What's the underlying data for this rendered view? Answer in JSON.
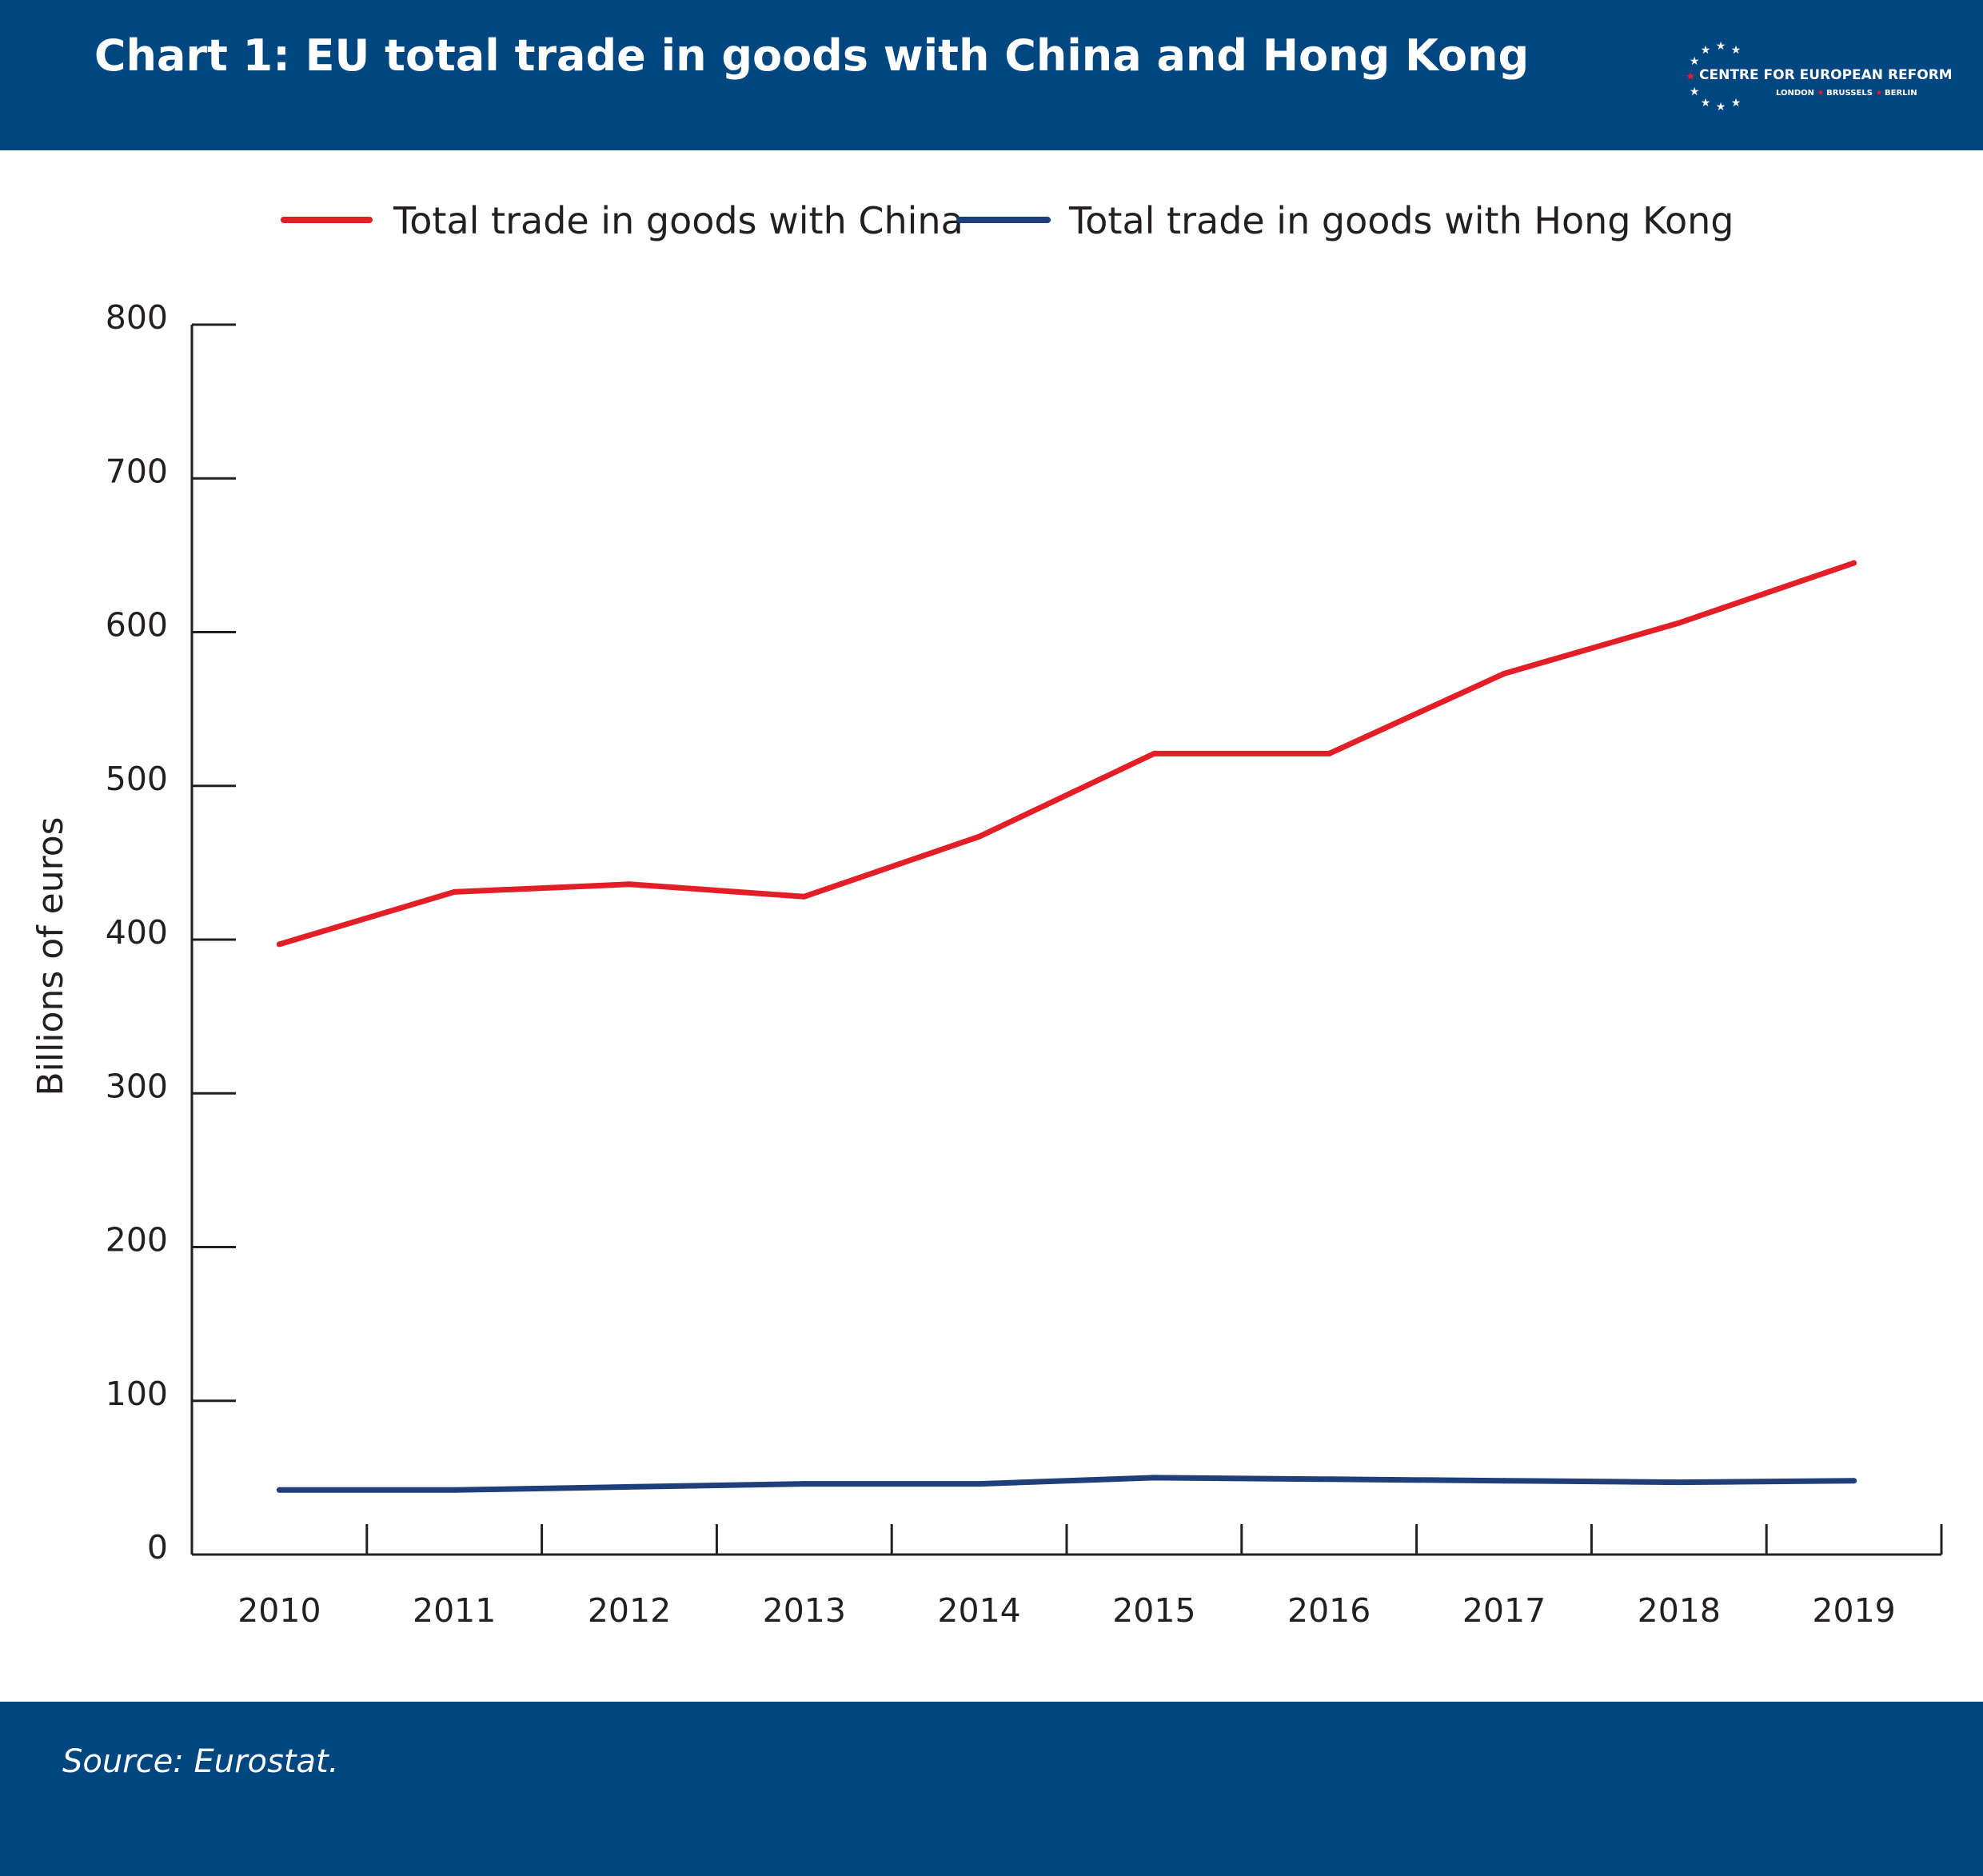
{
  "header": {
    "title": "Chart 1: EU total trade in goods with China and Hong Kong",
    "background": "#004680"
  },
  "logo": {
    "name": "CENTRE FOR EUROPEAN REFORM",
    "cities": [
      "LONDON",
      "BRUSSELS",
      "BERLIN"
    ],
    "star_color": "#ffffff",
    "accent_star_color": "#e31e26"
  },
  "footer": {
    "source": "Source: Eurostat."
  },
  "chart_data": {
    "type": "line",
    "title": "Chart 1: EU total trade in goods with China and Hong Kong",
    "xlabel": "",
    "ylabel": "Billions of euros",
    "ylim": [
      0,
      800
    ],
    "yticks": [
      0,
      100,
      200,
      300,
      400,
      500,
      600,
      700,
      800
    ],
    "categories": [
      "2010",
      "2011",
      "2012",
      "2013",
      "2014",
      "2015",
      "2016",
      "2017",
      "2018",
      "2019"
    ],
    "series": [
      {
        "name": "Total trade in goods with China",
        "color": "#e31e26",
        "values": [
          397,
          431,
          436,
          428,
          467,
          521,
          521,
          573,
          606,
          645
        ]
      },
      {
        "name": "Total trade in goods with Hong Kong",
        "color": "#1f3f7a",
        "values": [
          42,
          42,
          44,
          46,
          46,
          50,
          49,
          48,
          47,
          48
        ]
      }
    ],
    "legend_position": "top",
    "grid": false
  }
}
